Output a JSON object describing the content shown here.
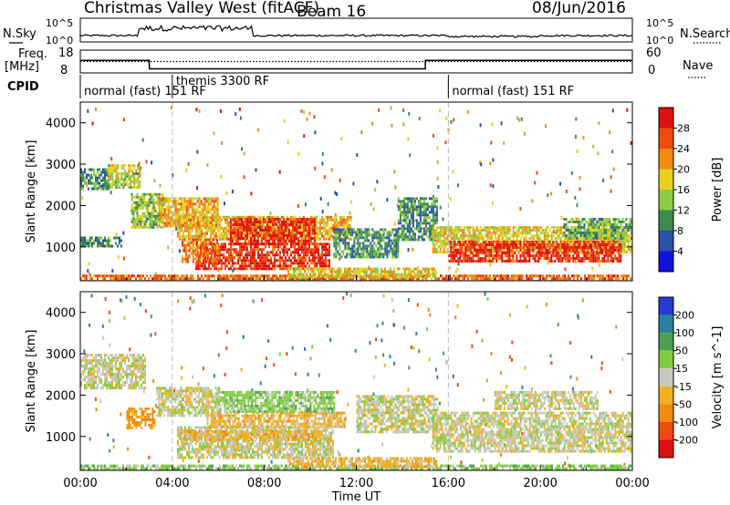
{
  "header": {
    "station": "Christmas Valley West (fitACF)",
    "beam": "Beam 16",
    "date": "08/Jun/2016"
  },
  "top_panels": {
    "nsky_label": "N.Sky",
    "nsearch_label": "N.Search",
    "noise_ticks_left": [
      "10^5",
      "10^0"
    ],
    "noise_ticks_right": [
      "10^5",
      "10^0"
    ],
    "freq_label_line1": "Freq.",
    "freq_label_line2": "[MHz]",
    "freq_ticks": [
      "18",
      "8"
    ],
    "nave_label": "Nave",
    "nave_ticks": [
      "60",
      "0"
    ],
    "cpid_label": "CPID",
    "cpid_segments": [
      {
        "label": "normal (fast) 151 RF",
        "start_hour": 0,
        "end_hour": 4
      },
      {
        "label": "themis 3300 RF",
        "start_hour": 4,
        "end_hour": 16
      },
      {
        "label": "normal (fast) 151 RF",
        "start_hour": 16,
        "end_hour": 24
      }
    ],
    "freq_series": {
      "x": [
        0,
        3,
        3,
        15,
        15,
        24
      ],
      "y": [
        13.5,
        13.5,
        9.8,
        9.8,
        13.5,
        13.5
      ]
    },
    "nave_series": {
      "x": [
        0,
        24
      ],
      "y": [
        30,
        30
      ]
    }
  },
  "chart_data": [
    {
      "type": "heatmap",
      "name": "power",
      "ylabel": "Slant Range [km]",
      "xlabel": "",
      "ylim": [
        180,
        4500
      ],
      "xlim": [
        0,
        24
      ],
      "yticks": [
        "1000",
        "2000",
        "3000",
        "4000"
      ],
      "ytick_values": [
        1000,
        2000,
        3000,
        4000
      ],
      "colorbar_label": "Power [dB]",
      "colorbar_ticks": [
        "4",
        "8",
        "12",
        "16",
        "20",
        "24",
        "28"
      ],
      "colorbar_values": [
        4,
        8,
        12,
        16,
        20,
        24,
        28
      ],
      "colorbar_colors": [
        "#1010e0",
        "#2a52a8",
        "#3e8a50",
        "#8ccc40",
        "#e8d020",
        "#f08a10",
        "#f04a10",
        "#e01010"
      ],
      "regions": [
        {
          "t0": 0.0,
          "t1": 1.2,
          "r0": 2400,
          "r1": 2900,
          "level": 10
        },
        {
          "t0": 1.2,
          "t1": 2.6,
          "r0": 2450,
          "r1": 3000,
          "level": 16
        },
        {
          "t0": 2.2,
          "t1": 3.6,
          "r0": 1500,
          "r1": 2300,
          "level": 14
        },
        {
          "t0": 3.4,
          "t1": 6.0,
          "r0": 1500,
          "r1": 2200,
          "level": 20
        },
        {
          "t0": 4.2,
          "t1": 11.8,
          "r0": 1200,
          "r1": 1750,
          "level": 20
        },
        {
          "t0": 6.5,
          "t1": 10.2,
          "r0": 1100,
          "r1": 1700,
          "level": 28
        },
        {
          "t0": 5.0,
          "t1": 10.8,
          "r0": 500,
          "r1": 1100,
          "level": 28
        },
        {
          "t0": 4.4,
          "t1": 6.0,
          "r0": 650,
          "r1": 1200,
          "level": 24
        },
        {
          "t0": 0.0,
          "t1": 24.0,
          "r0": 180,
          "r1": 330,
          "level": 24
        },
        {
          "t0": 9.0,
          "t1": 15.5,
          "r0": 280,
          "r1": 500,
          "level": 18
        },
        {
          "t0": 11.0,
          "t1": 13.8,
          "r0": 750,
          "r1": 1450,
          "level": 10
        },
        {
          "t0": 13.8,
          "t1": 15.5,
          "r0": 1150,
          "r1": 2200,
          "level": 10
        },
        {
          "t0": 15.3,
          "t1": 24.0,
          "r0": 900,
          "r1": 1500,
          "level": 18
        },
        {
          "t0": 16.0,
          "t1": 23.5,
          "r0": 650,
          "r1": 1150,
          "level": 28
        },
        {
          "t0": 21.0,
          "t1": 24.0,
          "r0": 1200,
          "r1": 1700,
          "level": 12
        },
        {
          "t0": 0.0,
          "t1": 1.8,
          "r0": 1050,
          "r1": 1250,
          "level": 10
        }
      ]
    },
    {
      "type": "heatmap",
      "name": "velocity",
      "ylabel": "Slant Range [km]",
      "xlabel": "Time UT",
      "ylim": [
        180,
        4500
      ],
      "xlim": [
        0,
        24
      ],
      "xticks": [
        "00:00",
        "04:00",
        "08:00",
        "12:00",
        "16:00",
        "20:00",
        "00:00"
      ],
      "xtick_values": [
        0,
        4,
        8,
        12,
        16,
        20,
        24
      ],
      "yticks": [
        "1000",
        "2000",
        "3000",
        "4000"
      ],
      "ytick_values": [
        1000,
        2000,
        3000,
        4000
      ],
      "colorbar_label": "Velocity [m s^-1]",
      "colorbar_ticks": [
        "200",
        "100",
        "50",
        "15",
        "-15",
        "-50",
        "-100",
        "-200"
      ],
      "colorbar_values": [
        200,
        100,
        50,
        15,
        -15,
        -50,
        -100,
        -200
      ],
      "colorbar_colors": [
        "#2a3ad0",
        "#2a80a0",
        "#4aa050",
        "#80cc40",
        "#c8c8c0",
        "#f0b020",
        "#f08a10",
        "#f04a10",
        "#e01010"
      ],
      "regions": [
        {
          "t0": 0.0,
          "t1": 2.8,
          "r0": 2200,
          "r1": 3000,
          "level": 0
        },
        {
          "t0": 2.0,
          "t1": 3.2,
          "r0": 1200,
          "r1": 1700,
          "level": -60
        },
        {
          "t0": 3.3,
          "t1": 6.0,
          "r0": 1500,
          "r1": 2200,
          "level": 0
        },
        {
          "t0": 5.5,
          "t1": 11.5,
          "r0": 1250,
          "r1": 1600,
          "level": -30
        },
        {
          "t0": 6.0,
          "t1": 11.0,
          "r0": 1600,
          "r1": 2100,
          "level": 30
        },
        {
          "t0": 4.2,
          "t1": 11.0,
          "r0": 500,
          "r1": 1250,
          "level": 0
        },
        {
          "t0": 4.5,
          "t1": 10.5,
          "r0": 900,
          "r1": 1150,
          "level": -30
        },
        {
          "t0": 0.0,
          "t1": 24.0,
          "r0": 180,
          "r1": 320,
          "level": 30
        },
        {
          "t0": 9.0,
          "t1": 15.5,
          "r0": 300,
          "r1": 500,
          "level": -30
        },
        {
          "t0": 12.0,
          "t1": 15.5,
          "r0": 1100,
          "r1": 2000,
          "level": 0
        },
        {
          "t0": 15.3,
          "t1": 24.0,
          "r0": 650,
          "r1": 1600,
          "level": 0
        },
        {
          "t0": 18.0,
          "t1": 22.5,
          "r0": 1700,
          "r1": 2100,
          "level": 0
        }
      ]
    }
  ]
}
